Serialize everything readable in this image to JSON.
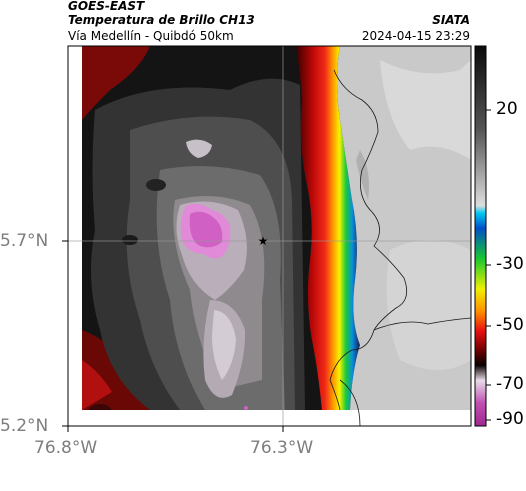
{
  "header": {
    "satellite": "GOES-EAST",
    "product": "Temperatura de Brillo CH13",
    "region": "Vía Medellín - Quibdó 50km",
    "brand": "SIATA",
    "timestamp": "2024-04-15 23:29"
  },
  "axes": {
    "lat_ticks": [
      "5.7°N",
      "5.2°N"
    ],
    "lon_ticks": [
      "76.8°W",
      "76.3°W"
    ]
  },
  "colorbar": {
    "ticks": [
      "20",
      "-30",
      "-50",
      "-70",
      "-90"
    ],
    "colors": [
      "#111111",
      "#c8c8c8",
      "#0a8fd8",
      "#19c93b",
      "#f4f400",
      "#f0281a",
      "#2b0000",
      "#e6dce6",
      "#c040a8"
    ]
  },
  "map": {
    "marker": "star-icon",
    "colors": {
      "warm_land": "#cfcfcf",
      "cold_core": "#d868c8",
      "red_band": "#d01010",
      "dark_cloud": "#262626"
    }
  }
}
